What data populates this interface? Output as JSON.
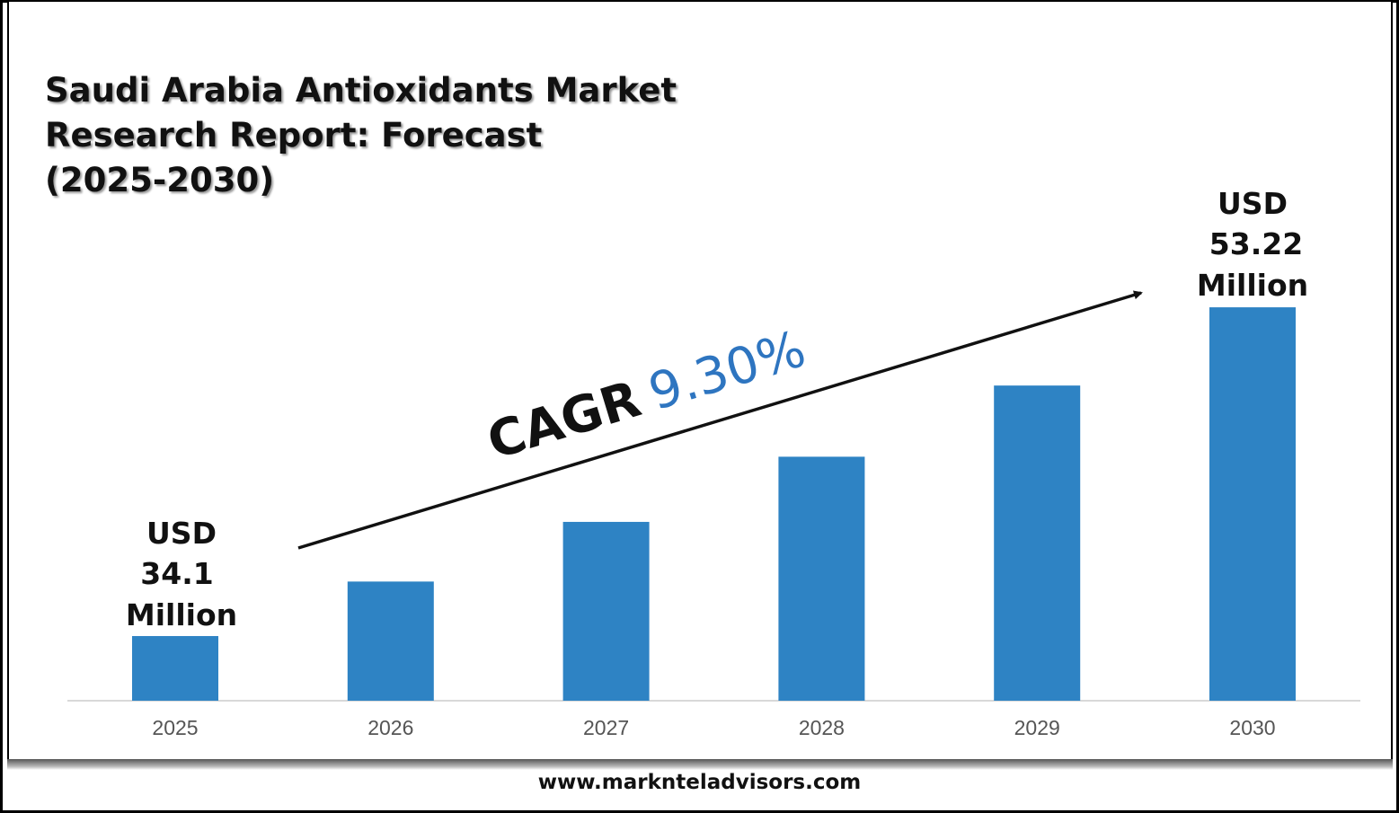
{
  "title_lines": [
    "Saudi Arabia Antioxidants Market",
    "Research Report: Forecast",
    "(2025-2030)"
  ],
  "footer": "www.marknteladvisors.com",
  "chart_data": {
    "type": "bar",
    "categories": [
      "2025",
      "2026",
      "2027",
      "2028",
      "2029",
      "2030"
    ],
    "values": [
      34.1,
      37.27,
      40.74,
      44.53,
      48.67,
      53.22
    ],
    "unit": "USD Million",
    "labels": {
      "first": [
        "USD",
        "34.1",
        "Million"
      ],
      "last": [
        "USD",
        "53.22",
        "Million"
      ]
    },
    "annotation": {
      "prefix": "CAGR",
      "value": "9.30%"
    },
    "bar_color": "#2E83C4",
    "annotation_value_color": "#2E75C0",
    "grid": false,
    "legend": "none"
  }
}
